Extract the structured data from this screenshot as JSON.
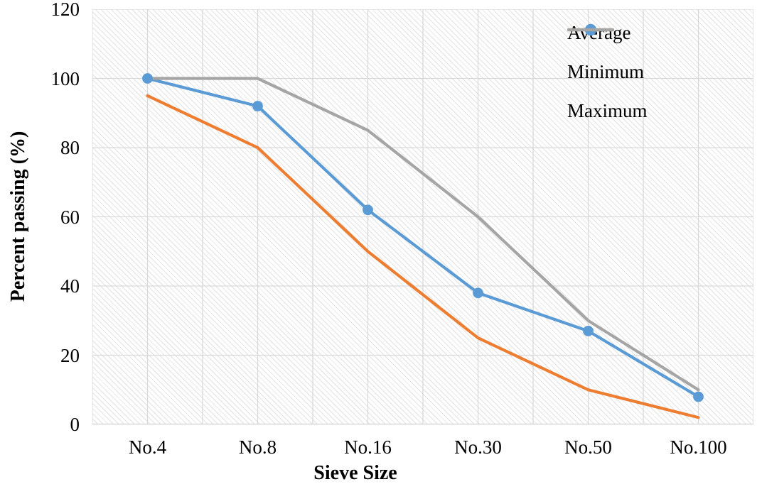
{
  "chart_data": {
    "type": "line",
    "title": "",
    "xlabel": "Sieve Size",
    "ylabel": "Percent passing (%)",
    "categories": [
      "No.4",
      "No.8",
      "No.16",
      "No.30",
      "No.50",
      "No.100"
    ],
    "series": [
      {
        "name": "Average",
        "color": "#5B9BD5",
        "marker": "circle",
        "values": [
          100,
          92,
          62,
          38,
          27,
          8
        ]
      },
      {
        "name": "Minimum",
        "color": "#ED7D31",
        "marker": "none",
        "values": [
          95,
          80,
          50,
          25,
          10,
          2
        ]
      },
      {
        "name": "Maximum",
        "color": "#A5A5A5",
        "marker": "none",
        "values": [
          100,
          100,
          85,
          60,
          30,
          10
        ]
      }
    ],
    "y_ticks": [
      0,
      20,
      40,
      60,
      80,
      100,
      120
    ],
    "ylim": [
      0,
      120
    ],
    "grid": {
      "horizontal": "major",
      "vertical": "major-and-minor",
      "color": "#d9d9d9",
      "axis_line_color": "#bfbfbf"
    },
    "legend_position": "top-right",
    "plot_background": "diagonal-hatch"
  }
}
